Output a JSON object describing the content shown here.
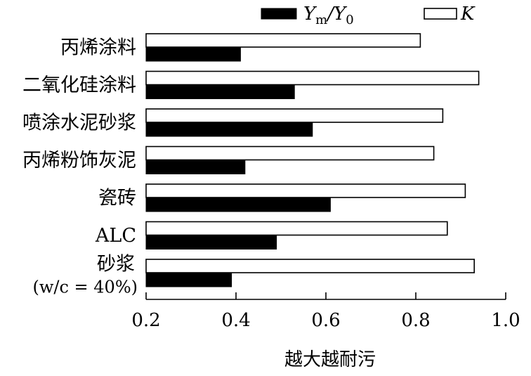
{
  "chart_data": {
    "type": "bar",
    "orientation": "horizontal",
    "title": "",
    "xlabel": "越大越耐污",
    "ylabel": "",
    "xlim": [
      0.2,
      1.0
    ],
    "xticks": [
      "0.2",
      "0.4",
      "0.6",
      "0.8",
      "1.0"
    ],
    "categories": [
      "丙烯涂料",
      "二氧化硅涂料",
      "喷涂水泥砂浆",
      "丙烯粉饰灰泥",
      "瓷砖",
      "ALC",
      [
        "砂浆",
        "(w/c = 40%)"
      ]
    ],
    "series": [
      {
        "name": "K",
        "color": "#ffffff",
        "values": [
          0.81,
          0.94,
          0.86,
          0.84,
          0.91,
          0.87,
          0.93
        ]
      },
      {
        "name": "Ym/Y0",
        "color": "#000000",
        "values": [
          0.41,
          0.53,
          0.57,
          0.42,
          0.61,
          0.49,
          0.39
        ]
      }
    ],
    "legend_position": "top",
    "grid": false
  }
}
